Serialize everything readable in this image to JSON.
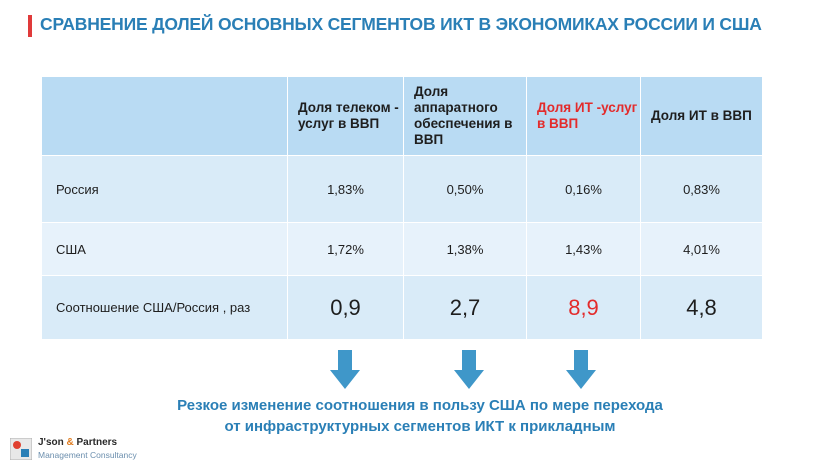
{
  "header": {
    "title": "СРАВНЕНИЕ ДОЛЕЙ ОСНОВНЫХ СЕГМЕНТОВ ИКТ В ЭКОНОМИКАХ РОССИИ И США",
    "accent_color": "#e03a3a",
    "title_color": "#2a7fb6"
  },
  "table": {
    "columns": [
      "",
      "Доля телеком - услуг в ВВП",
      "Доля аппаратного обеспечения в ВВП",
      "Доля ИТ -услуг в ВВП",
      "Доля ИТ в ВВП"
    ],
    "highlight_color": "#e32b2b",
    "rows": [
      {
        "label": "Россия",
        "values": [
          "1,83%",
          "0,50%",
          "0,16%",
          "0,83%"
        ]
      },
      {
        "label": "США",
        "values": [
          "1,72%",
          "1,38%",
          "1,43%",
          "4,01%"
        ]
      },
      {
        "label": "Соотношение США/Россия , раз",
        "values": [
          "0,9",
          "2,7",
          "8,9",
          "4,8"
        ]
      }
    ]
  },
  "arrows": {
    "icon": "arrow-down-icon",
    "color": "#3f97c9"
  },
  "conclusion": {
    "line1": "Резкое изменение соотношения в пользу США по мере перехода",
    "line2": "от инфраструктурных сегментов ИКТ к прикладным"
  },
  "logo": {
    "name_part1": "J'son",
    "amp": "&",
    "name_part2": "Partners",
    "subtitle": "Management Consultancy"
  }
}
